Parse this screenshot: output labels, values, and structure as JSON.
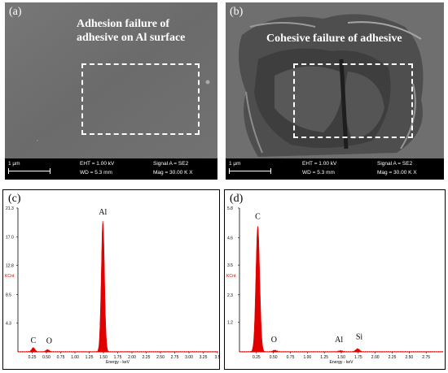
{
  "figure": {
    "panel_a": {
      "label": "(a)",
      "title_line1": "Adhesion failure of",
      "title_line2": "adhesive on Al surface",
      "info": {
        "scale": "1 μm",
        "eht": "EHT = 1.00 kV",
        "wd": "WD = 5.3 mm",
        "signal": "Signal A = SE2",
        "mag": "Mag = 30.00 K X"
      }
    },
    "panel_b": {
      "label": "(b)",
      "title": "Cohesive failure of adhesive",
      "info": {
        "scale": "1 μm",
        "eht": "EHT = 1.00 kV",
        "wd": "WD = 5.3 mm",
        "signal": "Signal A = SE2",
        "mag": "Mag = 30.00 K X"
      }
    },
    "panel_c": {
      "label": "(c)"
    },
    "panel_d": {
      "label": "(d)"
    }
  },
  "chart_data": [
    {
      "type": "line",
      "panel": "(c)",
      "xlabel": "Energy - keV",
      "ylabel": "KCnt",
      "xlim": [
        0,
        3.5
      ],
      "ylim": [
        0,
        21.3
      ],
      "xticks": [
        0.25,
        0.5,
        0.75,
        1.0,
        1.25,
        1.5,
        1.75,
        2.0,
        2.25,
        2.5,
        2.75,
        3.0,
        3.25,
        3.5
      ],
      "xtick_labels": [
        "0.25",
        "0.50",
        "0.75",
        "1.00",
        "1.25",
        "1.50",
        "1.75",
        "2.00",
        "2.25",
        "2.50",
        "2.75",
        "3.00",
        "3.25",
        "3.5"
      ],
      "yticks": [
        4.3,
        8.5,
        12.8,
        17.0,
        21.3
      ],
      "ytick_labels": [
        "4.3",
        "8.5",
        "12.8",
        "17.0",
        "21.3"
      ],
      "peaks": [
        {
          "element": "C",
          "x": 0.27,
          "y": 0.6
        },
        {
          "element": "O",
          "x": 0.52,
          "y": 0.3
        },
        {
          "element": "Al",
          "x": 1.49,
          "y": 19.4
        }
      ],
      "color": "#e00000"
    },
    {
      "type": "line",
      "panel": "(d)",
      "xlabel": "Energy - keV",
      "ylabel": "KCnt",
      "xlim": [
        0,
        3.0
      ],
      "ylim": [
        0,
        5.8
      ],
      "xticks": [
        0.25,
        0.5,
        0.75,
        1.0,
        1.25,
        1.5,
        1.75,
        2.0,
        2.25,
        2.5,
        2.75
      ],
      "xtick_labels": [
        "0.25",
        "0.50",
        "0.75",
        "1.00",
        "1.25",
        "1.50",
        "1.75",
        "2.00",
        "2.25",
        "2.50",
        "2.75"
      ],
      "yticks": [
        1.2,
        2.3,
        3.5,
        4.6,
        5.8
      ],
      "ytick_labels": [
        "1.2",
        "2.3",
        "3.5",
        "4.6",
        "5.8"
      ],
      "peaks": [
        {
          "element": "C",
          "x": 0.27,
          "y": 5.1
        },
        {
          "element": "O",
          "x": 0.52,
          "y": 0.06
        },
        {
          "element": "Al",
          "x": 1.49,
          "y": 0.04
        },
        {
          "element": "Si",
          "x": 1.74,
          "y": 0.12
        }
      ],
      "color": "#e00000"
    }
  ]
}
